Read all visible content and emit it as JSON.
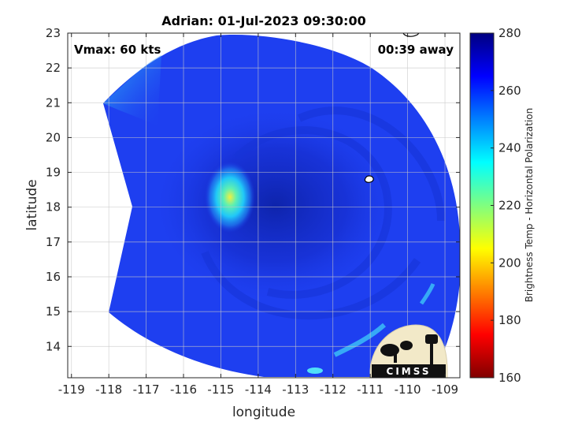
{
  "title": "Adrian: 01-Jul-2023 09:30:00",
  "vmax_label": "Vmax: 60 kts",
  "time_label": "00:39 away",
  "x_axis": {
    "label": "longitude",
    "range": [
      -119.1,
      -108.6
    ],
    "ticks": [
      -119,
      -118,
      -117,
      -116,
      -115,
      -114,
      -113,
      -112,
      -111,
      -110,
      -109
    ],
    "tick_labels": [
      "-119",
      "-118",
      "-117",
      "-116",
      "-115",
      "-114",
      "-113",
      "-112",
      "-111",
      "-110",
      "-109"
    ]
  },
  "y_axis": {
    "label": "latitude",
    "range": [
      13.1,
      23.0
    ],
    "ticks": [
      14,
      15,
      16,
      17,
      18,
      19,
      20,
      21,
      22,
      23
    ],
    "tick_labels": [
      "14",
      "15",
      "16",
      "17",
      "18",
      "19",
      "20",
      "21",
      "22",
      "23"
    ]
  },
  "colorbar": {
    "label": "Brightness Temp - Horizontal Polarization",
    "range": [
      160,
      280
    ],
    "ticks": [
      160,
      180,
      200,
      220,
      240,
      260,
      280
    ],
    "tick_labels": [
      "160",
      "180",
      "200",
      "220",
      "240",
      "260",
      "280"
    ],
    "colormap": "jet"
  },
  "storm": {
    "name": "Adrian",
    "center_lon": -113.7,
    "center_lat": 18.1,
    "convection_lon": -114.8,
    "convection_lat": 18.3
  },
  "logo": {
    "text": "CIMSS"
  },
  "grid": true,
  "colors": {
    "swath_base": "#1e3ff0",
    "swath_dark": "#142ad0",
    "swath_edge": "#27a9f4",
    "background": "#ffffff"
  }
}
